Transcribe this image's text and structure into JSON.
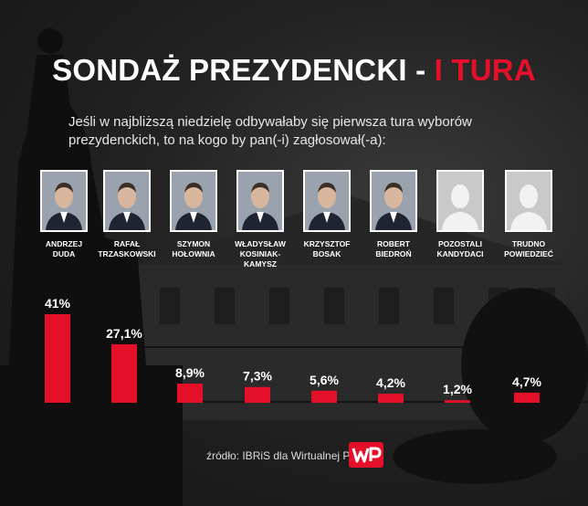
{
  "title": {
    "main": "SONDAŻ PREZYDENCKI - ",
    "accent": "I TURA"
  },
  "subtitle": "Jeśli w najbliższą niedzielę odbywałaby się pierwsza tura wyborów prezydenckich, to na kogo by pan(-i) zagłosował(-a):",
  "colors": {
    "accent": "#e4102a",
    "bar": "#e4102a",
    "text": "#ffffff"
  },
  "candidates": [
    {
      "line1": "ANDRZEJ",
      "line2": "DUDA",
      "photo": "person-photo"
    },
    {
      "line1": "RAFAŁ",
      "line2": "TRZASKOWSKI",
      "photo": "person-photo"
    },
    {
      "line1": "SZYMON",
      "line2": "HOŁOWNIA",
      "photo": "person-photo"
    },
    {
      "line1": "WŁADYSŁAW",
      "line2": "KOSINIAK-KAMYSZ",
      "photo": "person-photo"
    },
    {
      "line1": "KRZYSZTOF",
      "line2": "BOSAK",
      "photo": "person-photo"
    },
    {
      "line1": "ROBERT",
      "line2": "BIEDROŃ",
      "photo": "person-photo"
    },
    {
      "line1": "POZOSTALI",
      "line2": "KANDYDACI",
      "photo": "silhouette-icon"
    },
    {
      "line1": "TRUDNO",
      "line2": "POWIEDZIEĆ",
      "photo": "silhouette-icon"
    }
  ],
  "chart_data": {
    "type": "bar",
    "categories": [
      "ANDRZEJ DUDA",
      "RAFAŁ TRZASKOWSKI",
      "SZYMON HOŁOWNIA",
      "WŁADYSŁAW KOSINIAK-KAMYSZ",
      "KRZYSZTOF BOSAK",
      "ROBERT BIEDROŃ",
      "POZOSTALI KANDYDACI",
      "TRUDNO POWIEDZIEĆ"
    ],
    "values": [
      41,
      27.1,
      8.9,
      7.3,
      5.6,
      4.2,
      1.2,
      4.7
    ],
    "labels": [
      "41%",
      "27,1%",
      "8,9%",
      "7,3%",
      "5,6%",
      "4,2%",
      "1,2%",
      "4,7%"
    ],
    "ylim": [
      0,
      41
    ],
    "grid": false,
    "legend": "none"
  },
  "source": "źródło: IBRiS dla Wirtualnej Polski",
  "logo": "WP"
}
